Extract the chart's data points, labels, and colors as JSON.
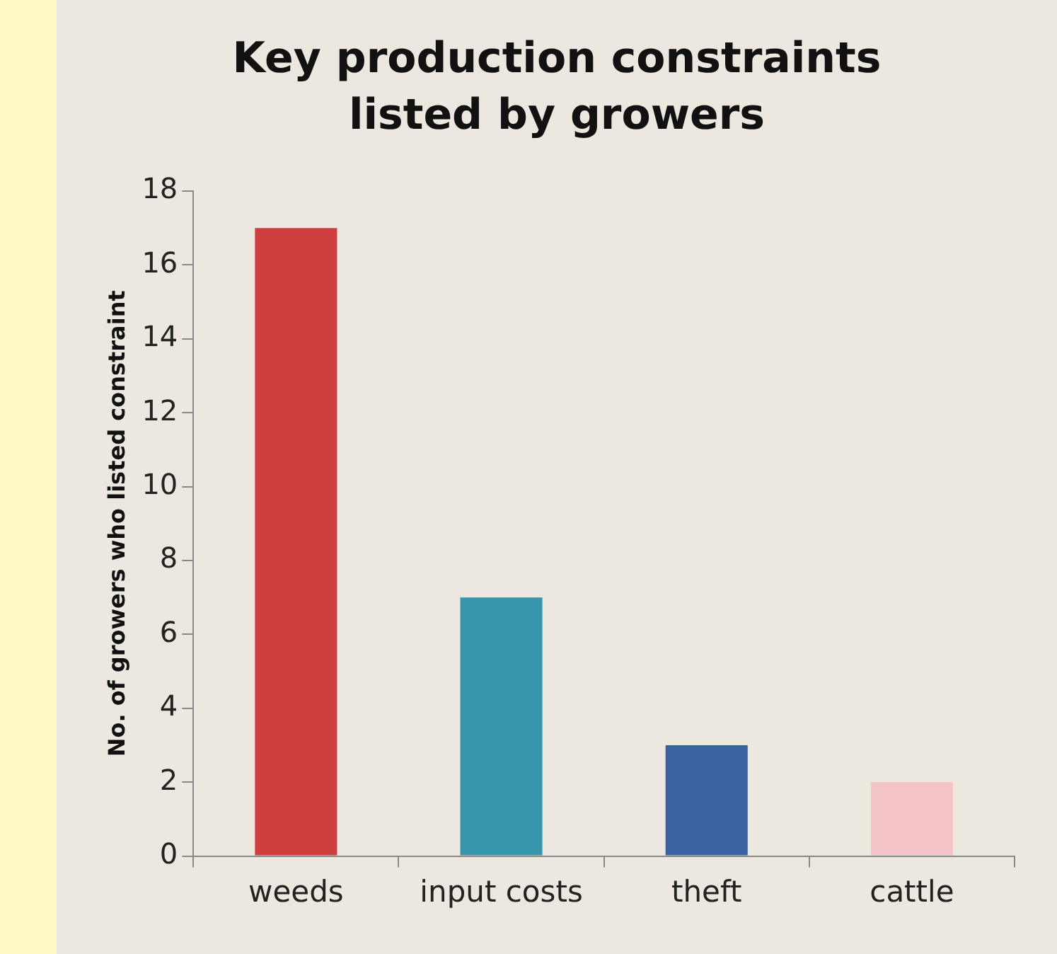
{
  "chart_data": {
    "type": "bar",
    "title": "Key production constraints listed by growers",
    "ylabel": "No. of growers who listed constraint",
    "categories": [
      "weeds",
      "input costs",
      "theft",
      "cattle"
    ],
    "values": [
      17,
      7,
      3,
      2
    ],
    "colors": [
      "#cf3e3e",
      "#3596ab",
      "#3a62a0",
      "#f3c3c7"
    ],
    "ylim": [
      0,
      18
    ],
    "yticks": [
      0,
      2,
      4,
      6,
      8,
      10,
      12,
      14,
      16,
      18
    ],
    "grid": false,
    "legend": false
  }
}
